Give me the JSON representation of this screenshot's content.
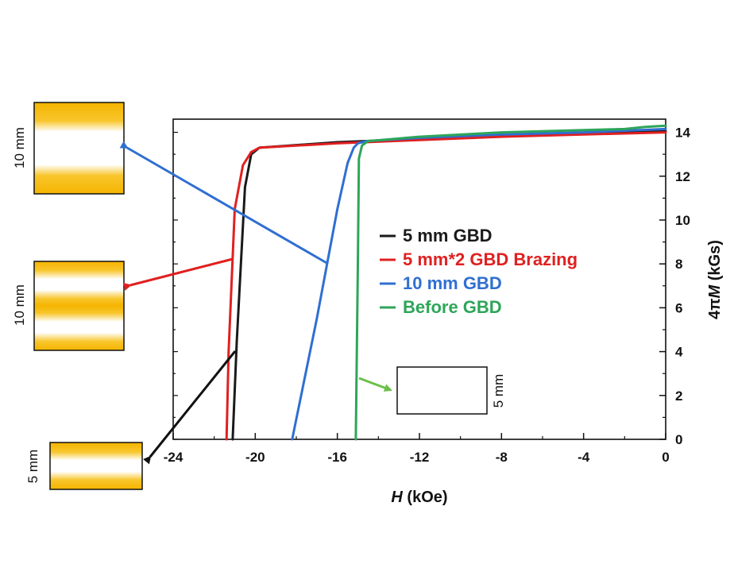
{
  "chart_data": {
    "type": "line",
    "xlabel_italic": "H",
    "xlabel_unit": " (kOe)",
    "ylabel_prefix": "4π",
    "ylabel_italic": "M",
    "ylabel_unit": " (kGs)",
    "xlim": [
      -24,
      0
    ],
    "ylim": [
      0,
      14.6
    ],
    "xticks": [
      -24,
      -20,
      -16,
      -12,
      -8,
      -4,
      0
    ],
    "yticks": [
      0,
      2,
      4,
      6,
      8,
      10,
      12,
      14
    ],
    "y_axis_side": "right",
    "grid": false,
    "legend_placement": "center",
    "series": [
      {
        "name": "5 mm GBD",
        "color": "#1a1a1a",
        "x": [
          -21.1,
          -20.9,
          -20.5,
          -20.2,
          -19.8,
          -16,
          -12,
          -8,
          -4,
          0
        ],
        "y": [
          0,
          4.5,
          11.5,
          13.0,
          13.3,
          13.55,
          13.7,
          13.85,
          13.95,
          14.05
        ]
      },
      {
        "name": "5 mm*2 GBD Brazing",
        "color": "#e02020",
        "x": [
          -21.4,
          -21.3,
          -21.0,
          -20.6,
          -20.2,
          -19.8,
          -16,
          -12,
          -8,
          -4,
          0
        ],
        "y": [
          0,
          4.0,
          10.5,
          12.5,
          13.1,
          13.3,
          13.5,
          13.65,
          13.8,
          13.9,
          14.0
        ]
      },
      {
        "name": "10 mm GBD",
        "color": "#2f6fd1",
        "x": [
          -18.2,
          -17.0,
          -16.0,
          -15.5,
          -15.2,
          -15.0,
          -14.6,
          -12,
          -8,
          -4,
          0
        ],
        "y": [
          0,
          5.5,
          10.5,
          12.6,
          13.3,
          13.5,
          13.6,
          13.75,
          13.9,
          14.0,
          14.15
        ]
      },
      {
        "name": "Before GBD",
        "color": "#2ea559",
        "x": [
          -15.1,
          -15.0,
          -14.95,
          -14.8,
          -14.5,
          -12,
          -8,
          -4,
          -2,
          -1,
          0
        ],
        "y": [
          0,
          8.0,
          12.8,
          13.4,
          13.6,
          13.8,
          14.0,
          14.1,
          14.15,
          14.25,
          14.3
        ]
      }
    ]
  },
  "labels": {
    "dim_top": "10 mm",
    "dim_mid": "10 mm",
    "dim_bottom": "5 mm",
    "dim_inset": "5 mm"
  },
  "colors": {
    "gold": "#f5b400",
    "arrow_blue": "#2f6fd1",
    "arrow_red": "#e02020",
    "arrow_black": "#111111",
    "arrow_green": "#6cc04a"
  }
}
